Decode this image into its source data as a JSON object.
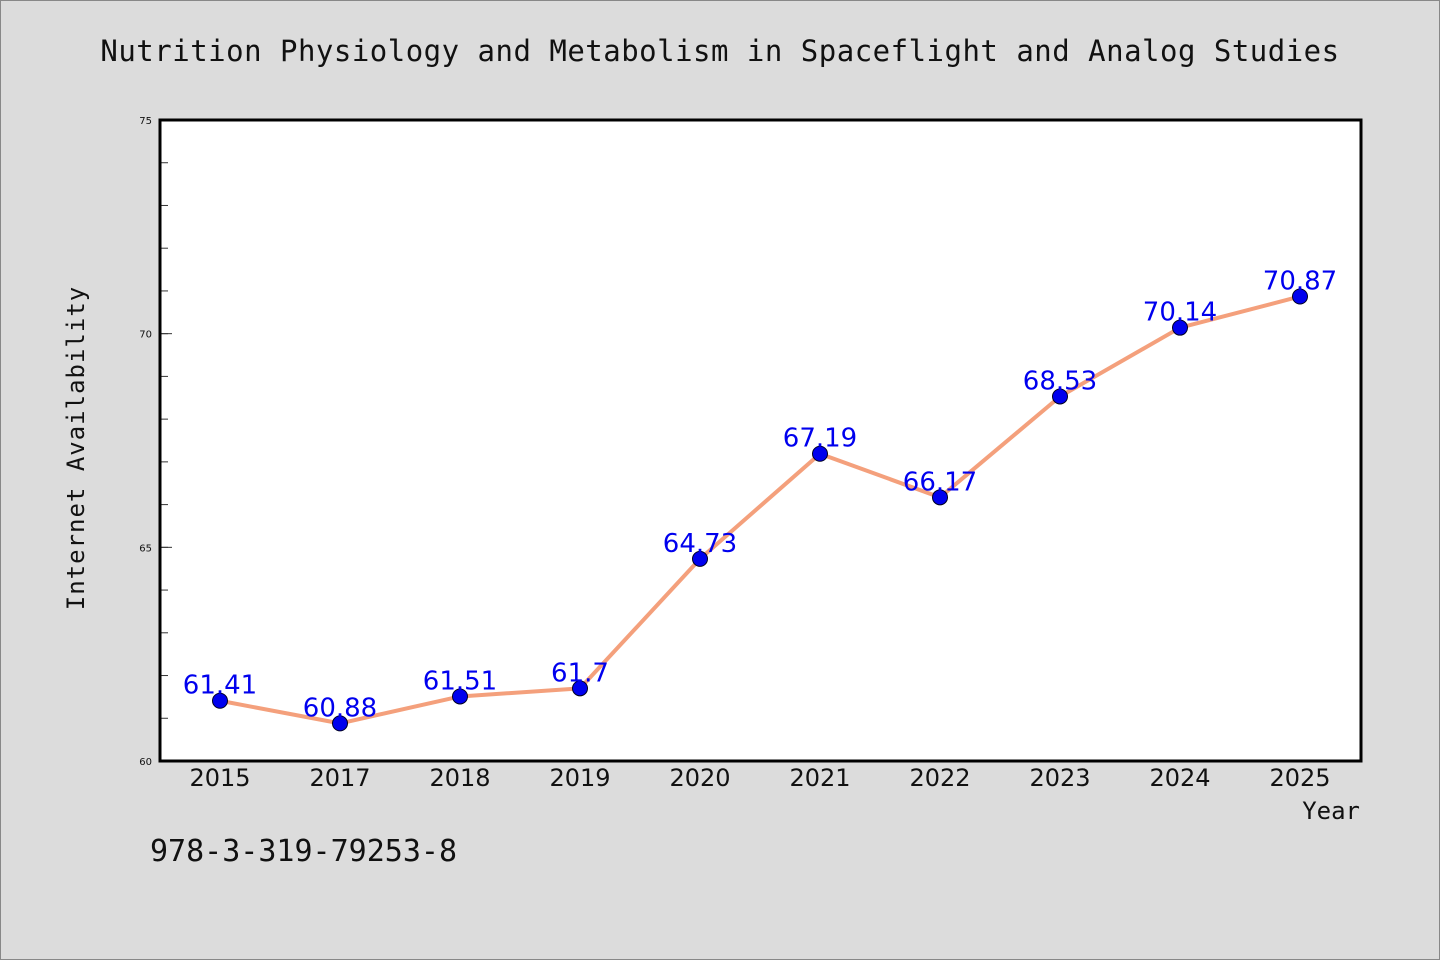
{
  "chart_data": {
    "type": "line",
    "title": "Nutrition Physiology and Metabolism in Spaceflight and Analog Studies",
    "xlabel": "Year",
    "ylabel": "Internet Availability",
    "categories": [
      "2015",
      "2017",
      "2018",
      "2019",
      "2020",
      "2021",
      "2022",
      "2023",
      "2024",
      "2025"
    ],
    "series": [
      {
        "values": [
          61.41,
          60.88,
          61.51,
          61.7,
          64.73,
          67.19,
          66.17,
          68.53,
          70.14,
          70.87
        ],
        "data_labels": [
          "61.41",
          "60.88",
          "61.51",
          "61.7",
          "64.73",
          "67.19",
          "66.17",
          "68.53",
          "70.14",
          "70.87"
        ],
        "line_color": "#f4a07c",
        "marker_color": "#0000ee",
        "label_color": "#0000ee"
      }
    ],
    "ylim": [
      60,
      75
    ],
    "yticks": [
      60,
      65,
      70,
      75
    ],
    "ytick_labels": [
      "60",
      "65",
      "70",
      "75"
    ],
    "grid": false,
    "legend": "none",
    "plot_background": "#ffffff",
    "figure_background": "#dcdcdc"
  },
  "footer": {
    "isbn": "978-3-319-79253-8"
  }
}
